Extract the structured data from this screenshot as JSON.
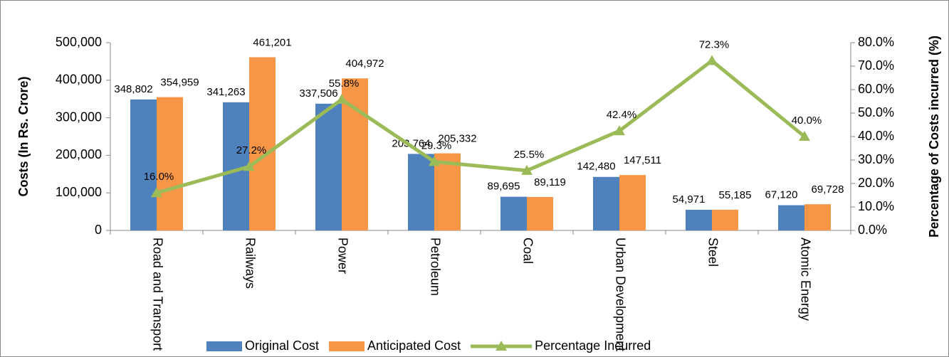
{
  "chart_data": {
    "type": "bar-line",
    "y_label": "Costs (In Rs. Crore)",
    "y2_label": "Percentage of Costs incurred (%)",
    "categories": [
      "Road and Transport",
      "Railways",
      "Power",
      "Petroleum",
      "Coal",
      "Urban Development",
      "Steel",
      "Atomic Energy"
    ],
    "series": [
      {
        "name": "Original Cost",
        "type": "bar",
        "color": "#4f81bd",
        "values": [
          348802,
          341263,
          337506,
          203764,
          89695,
          142480,
          54971,
          67120
        ],
        "value_labels": [
          "348,802",
          "341,263",
          "337,506",
          "203,764",
          "89,695",
          "142,480",
          "54,971",
          "67,120"
        ]
      },
      {
        "name": "Anticipated Cost",
        "type": "bar",
        "color": "#f79646",
        "values": [
          354959,
          461201,
          404972,
          205332,
          89119,
          147511,
          55185,
          69728
        ],
        "value_labels": [
          "354,959",
          "461,201",
          "404,972",
          "205,332",
          "89,119",
          "147,511",
          "55,185",
          "69,728"
        ]
      },
      {
        "name": "Percentage Incurred",
        "type": "line",
        "axis": "y2",
        "color": "#9bbb59",
        "values": [
          16.0,
          27.2,
          55.8,
          29.3,
          25.5,
          42.4,
          72.3,
          40.0
        ],
        "value_labels": [
          "16.0%",
          "27.2%",
          "55.8%",
          "29.3%",
          "25.5%",
          "42.4%",
          "72.3%",
          "40.0%"
        ]
      }
    ],
    "ylim": [
      0,
      500000
    ],
    "yticks": [
      0,
      {
        "value": 100000,
        "label": "100,000"
      },
      {
        "value": 200000,
        "label": "200,000"
      },
      {
        "value": 300000,
        "label": "300,000"
      },
      {
        "value": 400000,
        "label": "400,000"
      },
      {
        "value": 500000,
        "label": "500,000"
      }
    ],
    "y2lim": [
      0,
      80
    ],
    "y2ticks": [
      {
        "value": 0,
        "label": "0.0%"
      },
      {
        "value": 10,
        "label": "10.0%"
      },
      {
        "value": 20,
        "label": "20.0%"
      },
      {
        "value": 30,
        "label": "30.0%"
      },
      {
        "value": 40,
        "label": "40.0%"
      },
      {
        "value": 50,
        "label": "50.0%"
      },
      {
        "value": 60,
        "label": "60.0%"
      },
      {
        "value": 70,
        "label": "70.0%"
      },
      {
        "value": 80,
        "label": "80.0%"
      }
    ],
    "legend": "bottom",
    "grid": false
  }
}
